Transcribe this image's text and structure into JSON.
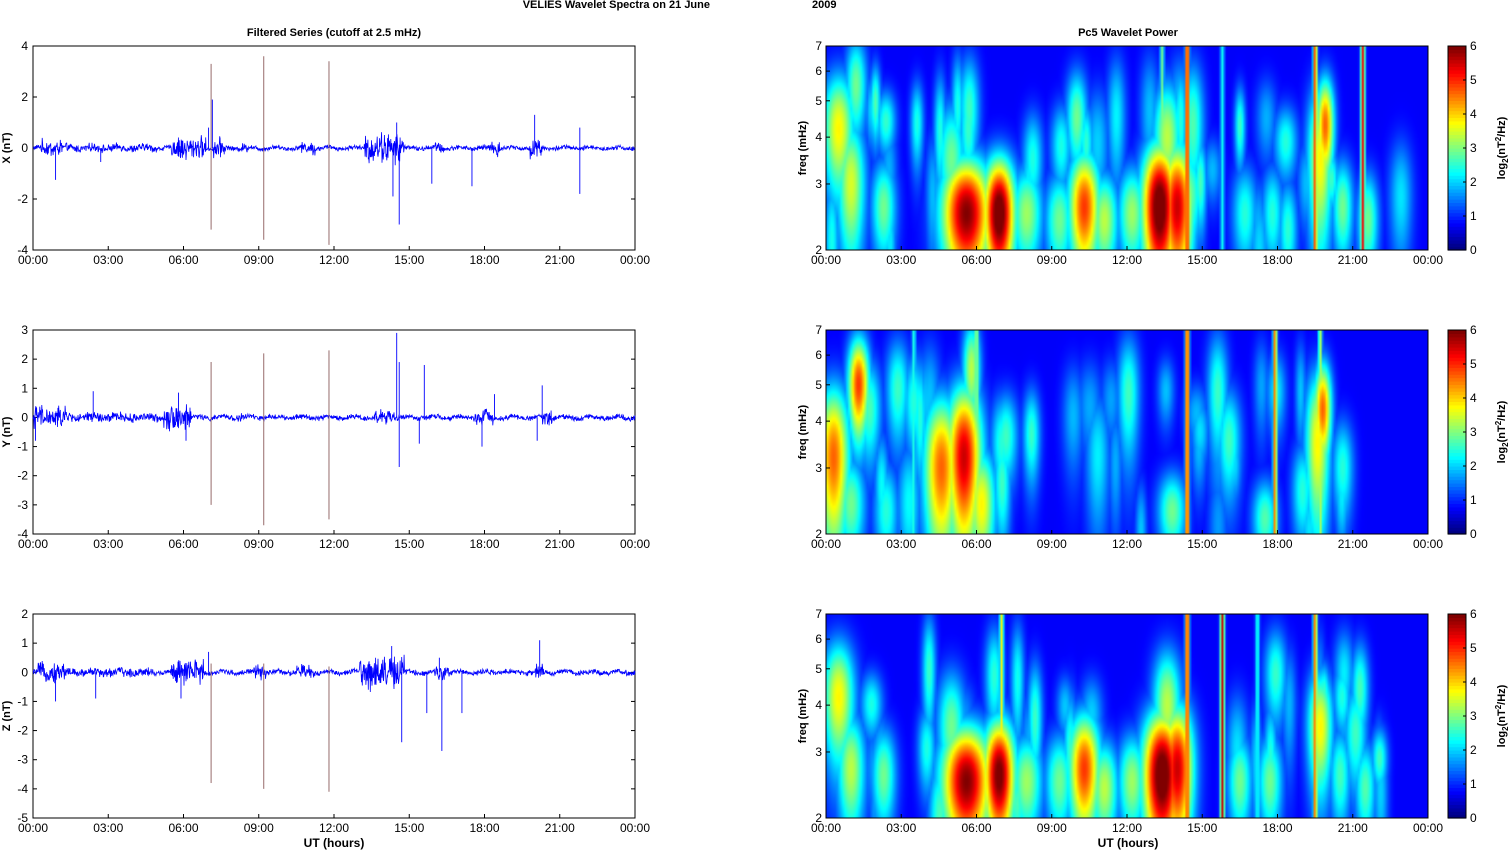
{
  "figure": {
    "title": "VELIES Wavelet Spectra on 21 June",
    "year": "2009",
    "left_title": "Filtered Series (cutoff at 2.5 mHz)",
    "right_title": "Pc5 Wavelet Power",
    "xlabel": "UT (hours)"
  },
  "colors": {
    "line": "#0000ff",
    "spike": "#8b5a5a",
    "axis": "#000000"
  },
  "chart_data": [
    {
      "type": "line",
      "ylabel": "X (nT)",
      "ylim": [
        -4,
        4
      ],
      "yticks": [
        -4,
        -2,
        0,
        2,
        4
      ],
      "xticks": [
        "00:00",
        "03:00",
        "06:00",
        "09:00",
        "12:00",
        "15:00",
        "18:00",
        "21:00",
        "00:00"
      ],
      "xlim_hours": [
        0,
        24
      ],
      "bursts": [
        [
          0.3,
          1.2,
          0.25
        ],
        [
          5.5,
          6.9,
          0.35
        ],
        [
          7.2,
          7.7,
          0.3
        ],
        [
          8.3,
          8.6,
          0.15
        ],
        [
          10.7,
          11.3,
          0.2
        ],
        [
          13.2,
          14.8,
          0.45
        ],
        [
          16.0,
          16.4,
          0.15
        ],
        [
          18.2,
          18.6,
          0.25
        ],
        [
          19.8,
          20.3,
          0.3
        ]
      ],
      "negative_dips": [
        [
          0.9,
          -1.25
        ],
        [
          2.7,
          -0.55
        ],
        [
          14.35,
          -1.9
        ],
        [
          14.6,
          -3.0
        ],
        [
          15.9,
          -1.4
        ],
        [
          17.5,
          -1.5
        ],
        [
          21.8,
          -1.8
        ]
      ],
      "positive_peaks": [
        [
          7.0,
          0.8
        ],
        [
          7.15,
          1.9
        ],
        [
          14.5,
          1.0
        ],
        [
          20.0,
          1.3
        ],
        [
          21.8,
          0.8
        ]
      ],
      "spikes": [
        {
          "x": 7.1,
          "ymax": 3.3,
          "ymin": -3.2
        },
        {
          "x": 9.2,
          "ymax": 3.6,
          "ymin": -3.6
        },
        {
          "x": 11.8,
          "ymax": 3.4,
          "ymin": -3.8
        }
      ]
    },
    {
      "type": "line",
      "ylabel": "Y (nT)",
      "ylim": [
        -4,
        3
      ],
      "yticks": [
        -4,
        -3,
        -2,
        -1,
        0,
        1,
        2,
        3
      ],
      "xticks": [
        "00:00",
        "03:00",
        "06:00",
        "09:00",
        "12:00",
        "15:00",
        "18:00",
        "21:00",
        "00:00"
      ],
      "xlim_hours": [
        0,
        24
      ],
      "bursts": [
        [
          0.0,
          1.3,
          0.3
        ],
        [
          2.2,
          3.2,
          0.15
        ],
        [
          5.2,
          6.3,
          0.35
        ],
        [
          8.1,
          8.5,
          0.12
        ],
        [
          13.6,
          14.4,
          0.2
        ],
        [
          17.6,
          18.4,
          0.2
        ],
        [
          20.3,
          20.7,
          0.2
        ]
      ],
      "negative_dips": [
        [
          0.1,
          -0.8
        ],
        [
          6.1,
          -0.8
        ],
        [
          14.6,
          -1.7
        ],
        [
          15.4,
          -0.9
        ],
        [
          17.9,
          -1.0
        ],
        [
          20.1,
          -0.8
        ]
      ],
      "positive_peaks": [
        [
          2.4,
          0.9
        ],
        [
          5.8,
          0.85
        ],
        [
          14.5,
          2.9
        ],
        [
          14.6,
          1.9
        ],
        [
          15.6,
          1.8
        ],
        [
          18.4,
          0.8
        ],
        [
          20.3,
          1.1
        ]
      ],
      "spikes": [
        {
          "x": 7.1,
          "ymax": 1.9,
          "ymin": -3.0
        },
        {
          "x": 9.2,
          "ymax": 2.2,
          "ymin": -3.7
        },
        {
          "x": 11.8,
          "ymax": 2.3,
          "ymin": -3.5
        }
      ]
    },
    {
      "type": "line",
      "ylabel": "Z (nT)",
      "ylim": [
        -5,
        2
      ],
      "yticks": [
        -5,
        -4,
        -3,
        -2,
        -1,
        0,
        1,
        2
      ],
      "xticks": [
        "00:00",
        "03:00",
        "06:00",
        "09:00",
        "12:00",
        "15:00",
        "18:00",
        "21:00",
        "00:00"
      ],
      "xlim_hours": [
        0,
        24
      ],
      "bursts": [
        [
          0.2,
          1.3,
          0.25
        ],
        [
          5.5,
          6.8,
          0.35
        ],
        [
          8.8,
          9.3,
          0.2
        ],
        [
          10.5,
          11.2,
          0.2
        ],
        [
          13.0,
          14.8,
          0.45
        ],
        [
          16.0,
          16.6,
          0.2
        ],
        [
          20.0,
          20.4,
          0.2
        ]
      ],
      "negative_dips": [
        [
          0.9,
          -1.0
        ],
        [
          2.5,
          -0.9
        ],
        [
          5.9,
          -0.9
        ],
        [
          14.7,
          -2.4
        ],
        [
          15.7,
          -1.4
        ],
        [
          16.3,
          -2.7
        ],
        [
          17.1,
          -1.4
        ]
      ],
      "positive_peaks": [
        [
          7.0,
          0.7
        ],
        [
          14.3,
          0.9
        ],
        [
          16.2,
          0.5
        ],
        [
          20.2,
          1.1
        ]
      ],
      "spikes": [
        {
          "x": 7.1,
          "ymax": 0.3,
          "ymin": -3.8
        },
        {
          "x": 9.2,
          "ymax": 0.3,
          "ymin": -4.0
        },
        {
          "x": 11.8,
          "ymax": 0.2,
          "ymin": -4.1
        }
      ]
    },
    {
      "type": "heatmap",
      "ylabel": "freq (mHz)",
      "yscale": "log",
      "ylim": [
        2,
        7
      ],
      "yticks": [
        2,
        3,
        4,
        5,
        6,
        7
      ],
      "xticks": [
        "00:00",
        "03:00",
        "06:00",
        "09:00",
        "12:00",
        "15:00",
        "18:00",
        "21:00",
        "00:00"
      ],
      "xlim_hours": [
        0,
        24
      ],
      "colorbar_label": "log2(nT^2/Hz)",
      "colorbar_ticks": [
        0,
        1,
        2,
        3,
        4,
        5,
        6
      ],
      "clim": [
        0,
        6
      ],
      "blobs": [
        [
          0.5,
          4.2,
          3.5,
          0.45,
          0.6
        ],
        [
          1.0,
          3.0,
          3.2,
          0.4,
          0.7
        ],
        [
          1.2,
          5.5,
          2.5,
          0.3,
          0.5
        ],
        [
          2.3,
          2.6,
          2.5,
          0.35,
          0.5
        ],
        [
          5.6,
          2.5,
          6.0,
          0.7,
          0.6
        ],
        [
          6.9,
          2.5,
          6.5,
          0.45,
          0.6
        ],
        [
          5.0,
          3.5,
          2.5,
          0.4,
          0.6
        ],
        [
          8.0,
          2.5,
          2.8,
          0.45,
          0.5
        ],
        [
          9.3,
          2.4,
          2.5,
          0.4,
          0.5
        ],
        [
          10.3,
          2.6,
          4.8,
          0.45,
          0.6
        ],
        [
          10.0,
          4.5,
          2.5,
          0.3,
          0.5
        ],
        [
          11.1,
          2.4,
          3.0,
          0.4,
          0.5
        ],
        [
          12.2,
          2.5,
          2.8,
          0.4,
          0.5
        ],
        [
          13.3,
          2.6,
          6.5,
          0.5,
          0.7
        ],
        [
          14.0,
          2.6,
          5.5,
          0.45,
          0.7
        ],
        [
          13.6,
          4.0,
          3.0,
          0.4,
          0.6
        ],
        [
          14.5,
          2.8,
          2.5,
          0.35,
          0.5
        ],
        [
          16.7,
          2.5,
          2.0,
          0.35,
          0.5
        ],
        [
          17.8,
          2.5,
          2.0,
          0.3,
          0.5
        ],
        [
          19.7,
          3.5,
          3.5,
          0.35,
          0.8
        ],
        [
          19.9,
          4.3,
          4.5,
          0.25,
          0.5
        ],
        [
          20.6,
          2.6,
          2.5,
          0.3,
          0.5
        ],
        [
          21.6,
          2.4,
          2.5,
          0.3,
          0.5
        ]
      ],
      "streaks": [
        [
          14.4,
          5.5
        ],
        [
          19.5,
          4.8
        ],
        [
          21.4,
          5.2
        ],
        [
          13.4,
          2.5
        ],
        [
          15.8,
          1.8
        ]
      ]
    },
    {
      "type": "heatmap",
      "ylabel": "freq (mHz)",
      "yscale": "log",
      "ylim": [
        2,
        7
      ],
      "yticks": [
        2,
        3,
        4,
        5,
        6,
        7
      ],
      "xticks": [
        "00:00",
        "03:00",
        "06:00",
        "09:00",
        "12:00",
        "15:00",
        "18:00",
        "21:00",
        "00:00"
      ],
      "xlim_hours": [
        0,
        24
      ],
      "colorbar_label": "log2(nT^2/Hz)",
      "colorbar_ticks": [
        0,
        1,
        2,
        3,
        4,
        5,
        6
      ],
      "clim": [
        0,
        6
      ],
      "blobs": [
        [
          0.3,
          3.2,
          4.5,
          0.45,
          0.8
        ],
        [
          1.3,
          5.0,
          4.8,
          0.3,
          0.5
        ],
        [
          1.0,
          2.4,
          2.5,
          0.4,
          0.5
        ],
        [
          2.4,
          2.3,
          2.0,
          0.35,
          0.5
        ],
        [
          4.6,
          3.0,
          4.5,
          0.5,
          0.8
        ],
        [
          5.5,
          3.2,
          5.5,
          0.5,
          0.8
        ],
        [
          5.8,
          5.5,
          3.0,
          0.25,
          0.5
        ],
        [
          6.2,
          2.4,
          3.5,
          0.4,
          0.6
        ],
        [
          7.0,
          3.5,
          2.0,
          0.3,
          0.5
        ],
        [
          3.5,
          4.5,
          2.0,
          0.3,
          0.5
        ],
        [
          13.8,
          2.3,
          2.5,
          0.4,
          0.4
        ],
        [
          17.5,
          2.2,
          2.3,
          0.35,
          0.4
        ],
        [
          19.6,
          3.5,
          3.5,
          0.35,
          0.8
        ],
        [
          19.8,
          4.3,
          4.5,
          0.25,
          0.5
        ],
        [
          19.0,
          2.6,
          2.0,
          0.3,
          0.5
        ],
        [
          20.6,
          3.0,
          2.0,
          0.3,
          0.5
        ]
      ],
      "streaks": [
        [
          14.4,
          5.2
        ],
        [
          17.9,
          4.5
        ],
        [
          3.5,
          2.0
        ],
        [
          6.0,
          3.0
        ],
        [
          19.7,
          3.0
        ]
      ]
    },
    {
      "type": "heatmap",
      "ylabel": "freq (mHz)",
      "yscale": "log",
      "ylim": [
        2,
        7
      ],
      "yticks": [
        2,
        3,
        4,
        5,
        6,
        7
      ],
      "xticks": [
        "00:00",
        "03:00",
        "06:00",
        "09:00",
        "12:00",
        "15:00",
        "18:00",
        "21:00",
        "00:00"
      ],
      "xlim_hours": [
        0,
        24
      ],
      "colorbar_label": "log2(nT^2/Hz)",
      "colorbar_ticks": [
        0,
        1,
        2,
        3,
        4,
        5,
        6
      ],
      "clim": [
        0,
        6
      ],
      "blobs": [
        [
          0.5,
          4.2,
          3.5,
          0.45,
          0.6
        ],
        [
          1.0,
          2.7,
          3.0,
          0.4,
          0.6
        ],
        [
          2.3,
          2.6,
          2.5,
          0.35,
          0.5
        ],
        [
          5.6,
          2.5,
          6.0,
          0.7,
          0.6
        ],
        [
          6.9,
          2.6,
          6.2,
          0.45,
          0.6
        ],
        [
          5.0,
          3.5,
          2.5,
          0.4,
          0.6
        ],
        [
          8.0,
          2.5,
          2.8,
          0.45,
          0.5
        ],
        [
          9.3,
          2.5,
          2.5,
          0.4,
          0.5
        ],
        [
          10.3,
          2.7,
          4.8,
          0.45,
          0.6
        ],
        [
          11.1,
          2.4,
          3.0,
          0.4,
          0.5
        ],
        [
          12.2,
          2.5,
          2.8,
          0.4,
          0.5
        ],
        [
          13.4,
          2.6,
          6.5,
          0.55,
          0.7
        ],
        [
          14.0,
          2.7,
          5.5,
          0.45,
          0.7
        ],
        [
          13.6,
          4.0,
          3.0,
          0.4,
          0.6
        ],
        [
          16.5,
          2.5,
          2.5,
          0.35,
          0.5
        ],
        [
          17.7,
          2.5,
          2.5,
          0.35,
          0.5
        ],
        [
          19.7,
          3.5,
          3.5,
          0.35,
          0.6
        ],
        [
          20.5,
          2.6,
          2.2,
          0.3,
          0.5
        ],
        [
          21.5,
          2.4,
          2.3,
          0.3,
          0.5
        ]
      ],
      "streaks": [
        [
          7.0,
          3.5
        ],
        [
          14.4,
          5.3
        ],
        [
          15.8,
          5.5
        ],
        [
          19.5,
          4.5
        ],
        [
          17.2,
          2.0
        ]
      ]
    }
  ]
}
